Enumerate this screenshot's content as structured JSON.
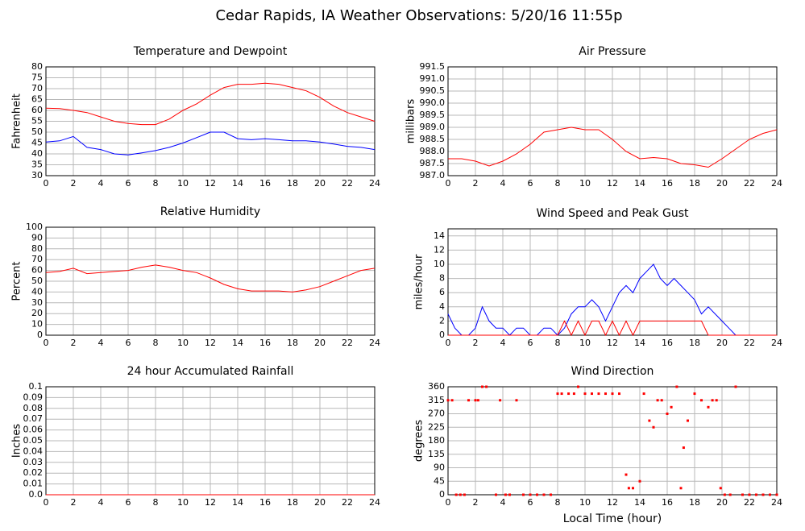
{
  "title": "Cedar Rapids, IA Weather Observations: 5/20/16 11:55p",
  "chart_data": [
    {
      "type": "line",
      "title": "Temperature and Dewpoint",
      "ylabel": "Fahrenheit",
      "xlim": [
        0,
        24
      ],
      "xticks": [
        0,
        2,
        4,
        6,
        8,
        10,
        12,
        14,
        16,
        18,
        20,
        22,
        24
      ],
      "ylim": [
        30,
        80
      ],
      "yticks": [
        30,
        35,
        40,
        45,
        50,
        55,
        60,
        65,
        70,
        75,
        80
      ],
      "grid": true,
      "x": [
        0,
        1,
        2,
        3,
        4,
        5,
        6,
        7,
        8,
        9,
        10,
        11,
        12,
        13,
        14,
        15,
        16,
        17,
        18,
        19,
        20,
        21,
        22,
        23,
        24
      ],
      "series": [
        {
          "color": "#ff0000",
          "values": [
            61,
            60.8,
            60,
            59,
            57,
            55,
            54,
            53.5,
            53.5,
            56,
            60,
            63,
            67,
            70.5,
            72,
            72,
            72.5,
            72,
            70.5,
            69,
            66,
            62,
            59,
            57,
            55
          ]
        },
        {
          "color": "#0000ff",
          "values": [
            45.5,
            46,
            48,
            43,
            42,
            40,
            39.5,
            40.5,
            41.5,
            43,
            45,
            47.5,
            50,
            50,
            47,
            46.5,
            47,
            46.5,
            46,
            46,
            45.5,
            44.5,
            43.5,
            43,
            42
          ]
        }
      ]
    },
    {
      "type": "line",
      "title": "Air Pressure",
      "ylabel": "millibars",
      "xlim": [
        0,
        24
      ],
      "xticks": [
        0,
        2,
        4,
        6,
        8,
        10,
        12,
        14,
        16,
        18,
        20,
        22,
        24
      ],
      "ylim": [
        987,
        991.5
      ],
      "yticks": [
        {
          "value": 987,
          "label": "987.0"
        },
        987.5,
        {
          "value": 988,
          "label": "988.0"
        },
        988.5,
        {
          "value": 989,
          "label": "989.0"
        },
        989.5,
        {
          "value": 990,
          "label": "990.0"
        },
        990.5,
        {
          "value": 991,
          "label": "991.0"
        },
        991.5
      ],
      "grid": true,
      "x": [
        0,
        1,
        2,
        3,
        4,
        5,
        6,
        7,
        8,
        9,
        10,
        11,
        12,
        13,
        14,
        15,
        16,
        17,
        18,
        19,
        20,
        21,
        22,
        23,
        24
      ],
      "series": [
        {
          "color": "#ff0000",
          "values": [
            987.7,
            987.7,
            987.6,
            987.4,
            987.6,
            987.9,
            988.3,
            988.8,
            988.9,
            989,
            988.9,
            988.9,
            988.5,
            988,
            987.7,
            987.75,
            987.7,
            987.5,
            987.45,
            987.35,
            987.7,
            988.1,
            988.5,
            988.75,
            988.9
          ]
        }
      ]
    },
    {
      "type": "line",
      "title": "Relative Humidity",
      "ylabel": "Percent",
      "xlim": [
        0,
        24
      ],
      "xticks": [
        0,
        2,
        4,
        6,
        8,
        10,
        12,
        14,
        16,
        18,
        20,
        22,
        24
      ],
      "ylim": [
        0,
        100
      ],
      "yticks": [
        0,
        10,
        20,
        30,
        40,
        50,
        60,
        70,
        80,
        90,
        100
      ],
      "grid": true,
      "x": [
        0,
        1,
        2,
        3,
        4,
        5,
        6,
        7,
        8,
        9,
        10,
        11,
        12,
        13,
        14,
        15,
        16,
        17,
        18,
        19,
        20,
        21,
        22,
        23,
        24
      ],
      "series": [
        {
          "color": "#ff0000",
          "values": [
            58,
            59,
            62,
            57,
            58,
            59,
            60,
            63,
            65,
            63,
            60,
            58,
            53,
            47,
            43,
            41,
            41,
            41,
            40,
            42,
            45,
            50,
            55,
            60,
            62
          ]
        }
      ]
    },
    {
      "type": "line",
      "title": "Wind Speed and Peak Gust",
      "ylabel": "miles/hour",
      "xlim": [
        0,
        24
      ],
      "xticks": [
        0,
        2,
        4,
        6,
        8,
        10,
        12,
        14,
        16,
        18,
        20,
        22,
        24
      ],
      "ylim": [
        0,
        15
      ],
      "yticks": [
        0,
        2,
        4,
        6,
        8,
        10,
        12,
        14
      ],
      "grid": true,
      "x": [
        0,
        0.5,
        1,
        1.5,
        2,
        2.5,
        3,
        3.5,
        4,
        4.5,
        5,
        5.5,
        6,
        6.5,
        7,
        7.5,
        8,
        8.5,
        9,
        9.5,
        10,
        10.5,
        11,
        11.5,
        12,
        12.5,
        13,
        13.5,
        14,
        14.5,
        15,
        15.5,
        16,
        16.5,
        17,
        17.5,
        18,
        18.5,
        19,
        19.5,
        20,
        20.5,
        21,
        21.5,
        22,
        22.5,
        23,
        23.5,
        24
      ],
      "series": [
        {
          "color": "#0000ff",
          "values": [
            3,
            1,
            0,
            0,
            1,
            4,
            2,
            1,
            1,
            0,
            1,
            1,
            0,
            0,
            1,
            1,
            0,
            1,
            3,
            4,
            4,
            5,
            4,
            2,
            4,
            6,
            7,
            6,
            8,
            9,
            10,
            8,
            7,
            8,
            7,
            6,
            5,
            3,
            4,
            3,
            2,
            1,
            0,
            0,
            0,
            0,
            0,
            0,
            0
          ]
        },
        {
          "color": "#ff0000",
          "values": [
            0,
            0,
            0,
            0,
            0,
            0,
            0,
            0,
            0,
            0,
            0,
            0,
            0,
            0,
            0,
            0,
            0,
            2,
            0,
            2,
            0,
            2,
            2,
            0,
            2,
            0,
            2,
            0,
            2,
            2,
            2,
            2,
            2,
            2,
            2,
            2,
            2,
            2,
            0,
            0,
            0,
            0,
            0,
            0,
            0,
            0,
            0,
            0,
            0
          ]
        }
      ]
    },
    {
      "type": "line",
      "title": "24 hour Accumulated Rainfall",
      "ylabel": "Inches",
      "xlim": [
        0,
        24
      ],
      "xticks": [
        0,
        2,
        4,
        6,
        8,
        10,
        12,
        14,
        16,
        18,
        20,
        22,
        24
      ],
      "ylim": [
        0,
        0.1
      ],
      "yticks": [
        {
          "value": 0,
          "label": "0.0"
        },
        0.01,
        0.02,
        0.03,
        0.04,
        0.05,
        0.06,
        0.07,
        0.08,
        0.09,
        0.1
      ],
      "grid": true,
      "x": [
        0,
        2,
        4,
        6,
        8,
        10,
        12,
        14,
        16,
        18,
        20,
        22,
        24
      ],
      "series": [
        {
          "color": "#ff0000",
          "values": [
            0,
            0,
            0,
            0,
            0,
            0,
            0,
            0,
            0,
            0,
            0,
            0,
            0
          ]
        }
      ]
    },
    {
      "type": "scatter",
      "title": "Wind Direction",
      "ylabel": "degrees",
      "xlabel": "Local Time (hour)",
      "xlim": [
        0,
        24
      ],
      "xticks": [
        0,
        2,
        4,
        6,
        8,
        10,
        12,
        14,
        16,
        18,
        20,
        22,
        24
      ],
      "ylim": [
        0,
        360
      ],
      "yticks": [
        0,
        45,
        90,
        135,
        180,
        225,
        270,
        315,
        360
      ],
      "grid": true,
      "color": "#ff0000",
      "x": [
        0,
        0.3,
        0.6,
        0.9,
        1.2,
        1.5,
        2,
        2.2,
        2.5,
        2.8,
        3.5,
        3.8,
        4.2,
        4.5,
        5,
        5.5,
        6,
        6.5,
        7,
        7.5,
        8,
        8.3,
        8.8,
        9.2,
        9.5,
        10,
        10.5,
        11,
        11.5,
        12,
        12.5,
        13,
        13.2,
        13.5,
        14,
        14.3,
        14.7,
        15,
        15.3,
        15.6,
        16,
        16.3,
        16.7,
        17,
        17.2,
        17.5,
        18,
        18.5,
        19,
        19.3,
        19.6,
        19.9,
        20.2,
        20.6,
        21,
        21.5,
        22,
        22.5,
        23,
        23.5,
        24
      ],
      "y": [
        315,
        315,
        0,
        0,
        0,
        315,
        315,
        315,
        360,
        360,
        0,
        315,
        0,
        0,
        315,
        0,
        0,
        0,
        0,
        0,
        337,
        337,
        337,
        337,
        360,
        337,
        337,
        337,
        337,
        337,
        337,
        67,
        22,
        22,
        45,
        337,
        247,
        225,
        315,
        315,
        270,
        292,
        360,
        22,
        157,
        247,
        337,
        315,
        292,
        315,
        315,
        22,
        0,
        0,
        360,
        0,
        0,
        0,
        0,
        0,
        0
      ]
    }
  ]
}
